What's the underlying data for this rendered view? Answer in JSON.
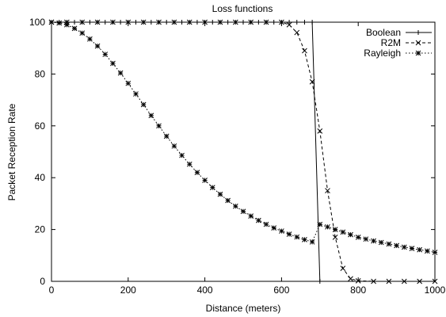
{
  "chart_data": {
    "type": "line",
    "title": "Loss functions",
    "xlabel": "Distance (meters)",
    "ylabel": "Packet Reception Rate",
    "xlim": [
      0,
      1000
    ],
    "ylim": [
      0,
      100
    ],
    "xticks": [
      0,
      200,
      400,
      600,
      800,
      1000
    ],
    "yticks": [
      0,
      20,
      40,
      60,
      80,
      100
    ],
    "grid": false,
    "legend": "top-right",
    "series": [
      {
        "name": "Boolean",
        "marker": "plus",
        "dash": "solid",
        "x": [
          0,
          20,
          40,
          60,
          80,
          100,
          120,
          140,
          160,
          180,
          200,
          220,
          240,
          260,
          280,
          300,
          320,
          340,
          360,
          380,
          400,
          420,
          440,
          460,
          480,
          500,
          520,
          540,
          560,
          580,
          600,
          620,
          640,
          660,
          680,
          700
        ],
        "y": [
          100,
          100,
          100,
          100,
          100,
          100,
          100,
          100,
          100,
          100,
          100,
          100,
          100,
          100,
          100,
          100,
          100,
          100,
          100,
          100,
          100,
          100,
          100,
          100,
          100,
          100,
          100,
          100,
          100,
          100,
          100,
          100,
          100,
          100,
          100,
          0
        ]
      },
      {
        "name": "R2M",
        "marker": "x",
        "dash": "dashed",
        "x": [
          0,
          40,
          80,
          120,
          160,
          200,
          240,
          280,
          320,
          360,
          400,
          440,
          480,
          520,
          560,
          600,
          620,
          640,
          660,
          680,
          700,
          720,
          740,
          760,
          780,
          800,
          840,
          880,
          920,
          960,
          1000
        ],
        "y": [
          100,
          100,
          100,
          100,
          100,
          100,
          100,
          100,
          100,
          100,
          100,
          100,
          100,
          100,
          100,
          100,
          99,
          96,
          89,
          77,
          58,
          35,
          17,
          5,
          1,
          0.2,
          0,
          0,
          0,
          0,
          0
        ]
      },
      {
        "name": "Rayleigh",
        "marker": "star",
        "dash": "dotted",
        "x": [
          0,
          20,
          40,
          60,
          80,
          100,
          120,
          140,
          160,
          180,
          200,
          220,
          240,
          260,
          280,
          300,
          320,
          340,
          360,
          380,
          400,
          420,
          440,
          460,
          480,
          500,
          520,
          540,
          560,
          580,
          600,
          620,
          640,
          660,
          680,
          700,
          720,
          740,
          760,
          780,
          800,
          820,
          840,
          860,
          880,
          900,
          920,
          940,
          960,
          980,
          1000
        ],
        "y": [
          100,
          99.7,
          99,
          97.6,
          95.8,
          93.5,
          90.8,
          87.6,
          84.1,
          80.4,
          76.4,
          72.3,
          68.2,
          64,
          60,
          56,
          52.2,
          48.6,
          45.2,
          42,
          39,
          36.2,
          33.6,
          31.2,
          29,
          27,
          25.2,
          23.5,
          22,
          20.6,
          19.4,
          18.2,
          17.1,
          16.1,
          15.2,
          22,
          21,
          20,
          19,
          18,
          17,
          16.3,
          15.6,
          15,
          14.4,
          13.8,
          13.2,
          12.7,
          12.2,
          11.7,
          11.2
        ]
      }
    ]
  }
}
